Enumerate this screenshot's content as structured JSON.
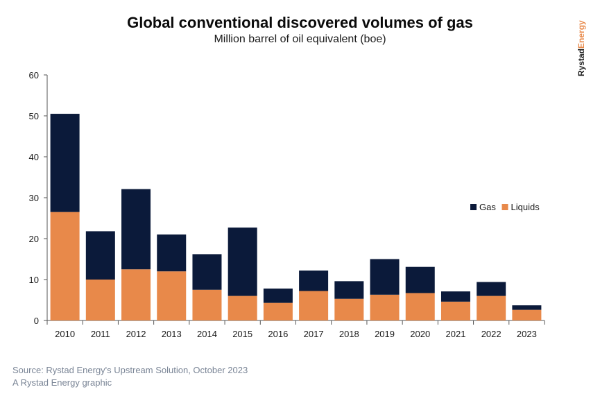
{
  "header": {
    "title": "Global conventional discovered volumes of gas",
    "subtitle": "Million barrel of oil equivalent (boe)"
  },
  "brand": {
    "name_part1": "Rystad",
    "name_part2": "Energy",
    "color_part1": "#1a1a1a",
    "color_part2": "#e8894a"
  },
  "footer": {
    "source": "Source: Rystad Energy's Upstream Solution, October 2023",
    "credit": "A Rystad Energy graphic"
  },
  "chart_data": {
    "type": "bar",
    "stacked": true,
    "title": "Global conventional discovered volumes of gas",
    "subtitle": "Million barrel of oil equivalent (boe)",
    "xlabel": "",
    "ylabel": "",
    "ylim": [
      0,
      60
    ],
    "yticks": [
      0,
      10,
      20,
      30,
      40,
      50,
      60
    ],
    "grid": false,
    "legend_position": "right",
    "categories": [
      "2010",
      "2011",
      "2012",
      "2013",
      "2014",
      "2015",
      "2016",
      "2017",
      "2018",
      "2019",
      "2020",
      "2021",
      "2022",
      "2023"
    ],
    "series": [
      {
        "name": "Liquids",
        "color": "#e8894a",
        "values": [
          26.5,
          10.0,
          12.5,
          12.0,
          7.5,
          6.0,
          4.3,
          7.2,
          5.3,
          6.3,
          6.7,
          4.6,
          6.0,
          2.6
        ]
      },
      {
        "name": "Gas",
        "color": "#0b1a3a",
        "values": [
          24.0,
          11.8,
          19.6,
          9.0,
          8.7,
          16.7,
          3.5,
          5.0,
          4.3,
          8.7,
          6.4,
          2.5,
          3.4,
          1.1
        ]
      }
    ],
    "legend": [
      {
        "name": "Gas",
        "color": "#0b1a3a"
      },
      {
        "name": "Liquids",
        "color": "#e8894a"
      }
    ]
  }
}
